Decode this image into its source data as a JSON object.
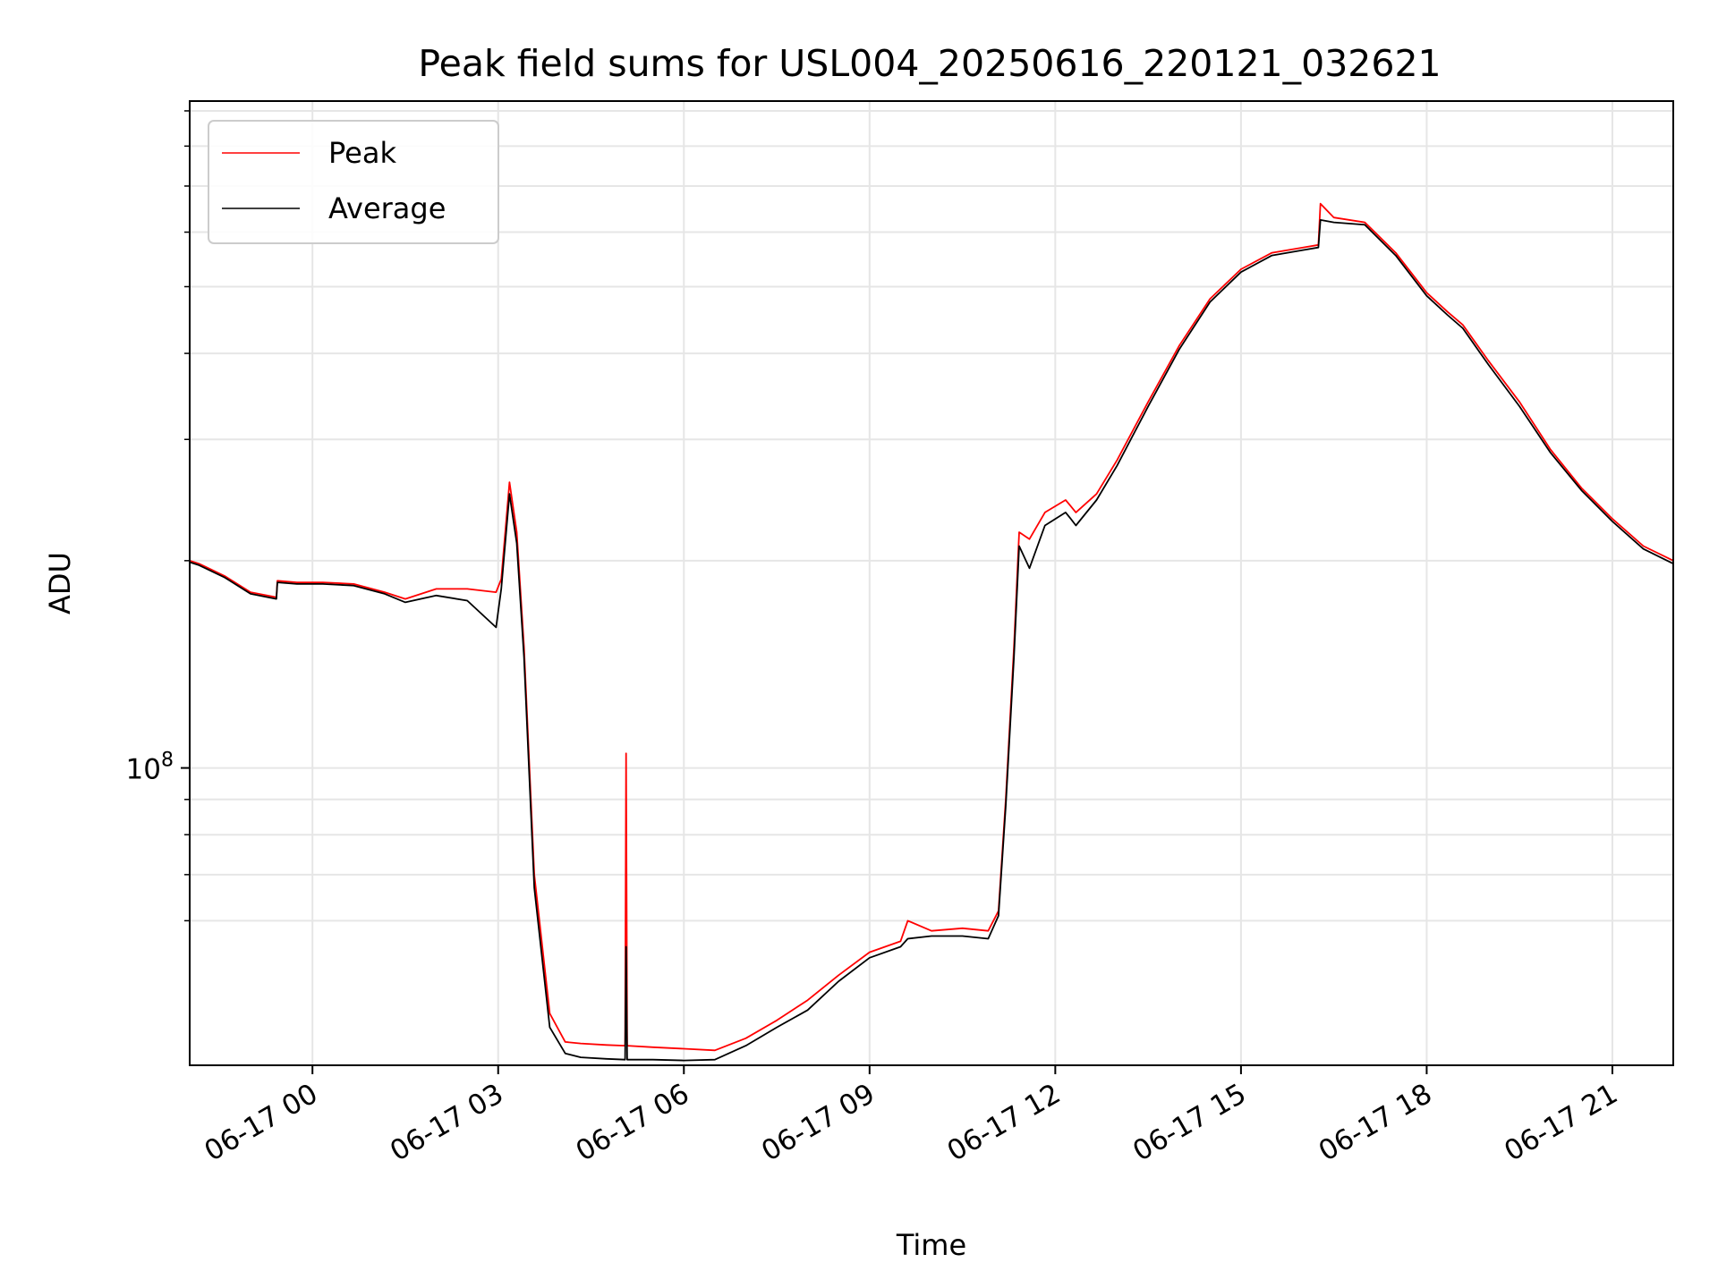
{
  "chart_data": {
    "type": "line",
    "title": "Peak field sums for USL004_20250616_220121_032621",
    "xlabel": "Time",
    "ylabel": "ADU",
    "yscale": "log",
    "ylim": [
      37000000,
      930000000
    ],
    "xlim": [
      "2025-06-16 22:01",
      "2025-06-17 21:59"
    ],
    "x_ticks": [
      "06-17 00",
      "06-17 03",
      "06-17 06",
      "06-17 09",
      "06-17 12",
      "06-17 15",
      "06-17 18",
      "06-17 21"
    ],
    "y_tick_labels": [
      {
        "base": "10",
        "exp": "8"
      }
    ],
    "y_major_ticks": [
      100000000
    ],
    "y_minor_ticks": [
      60000000,
      70000000,
      80000000,
      90000000,
      200000000,
      300000000,
      400000000,
      500000000,
      600000000,
      700000000,
      800000000,
      900000000
    ],
    "grid": true,
    "legend": {
      "placement": "top-left"
    },
    "series": [
      {
        "name": "Peak",
        "color": "#ff0000",
        "x": [
          "2025-06-16 22:01",
          "2025-06-16 22:10",
          "2025-06-16 22:35",
          "2025-06-16 23:00",
          "2025-06-16 23:25",
          "2025-06-16 23:26",
          "2025-06-16 23:45",
          "2025-06-17 00:10",
          "2025-06-17 00:40",
          "2025-06-17 01:10",
          "2025-06-17 01:30",
          "2025-06-17 02:00",
          "2025-06-17 02:30",
          "2025-06-17 02:58",
          "2025-06-17 03:03",
          "2025-06-17 03:11",
          "2025-06-17 03:18",
          "2025-06-17 03:25",
          "2025-06-17 03:35",
          "2025-06-17 03:50",
          "2025-06-17 04:05",
          "2025-06-17 04:20",
          "2025-06-17 04:45",
          "2025-06-17 05:03",
          "2025-06-17 05:04",
          "2025-06-17 05:05",
          "2025-06-17 05:30",
          "2025-06-17 06:00",
          "2025-06-17 06:30",
          "2025-06-17 07:00",
          "2025-06-17 07:30",
          "2025-06-17 08:00",
          "2025-06-17 08:30",
          "2025-06-17 09:00",
          "2025-06-17 09:30",
          "2025-06-17 09:37",
          "2025-06-17 10:00",
          "2025-06-17 10:30",
          "2025-06-17 10:55",
          "2025-06-17 11:05",
          "2025-06-17 11:12",
          "2025-06-17 11:20",
          "2025-06-17 11:25",
          "2025-06-17 11:35",
          "2025-06-17 11:50",
          "2025-06-17 12:10",
          "2025-06-17 12:15",
          "2025-06-17 12:20",
          "2025-06-17 12:40",
          "2025-06-17 13:00",
          "2025-06-17 13:30",
          "2025-06-17 14:00",
          "2025-06-17 14:30",
          "2025-06-17 15:00",
          "2025-06-17 15:30",
          "2025-06-17 16:00",
          "2025-06-17 16:15",
          "2025-06-17 16:17",
          "2025-06-17 16:30",
          "2025-06-17 17:00",
          "2025-06-17 17:30",
          "2025-06-17 18:00",
          "2025-06-17 18:20",
          "2025-06-17 18:35",
          "2025-06-17 19:00",
          "2025-06-17 19:30",
          "2025-06-17 20:00",
          "2025-06-17 20:30",
          "2025-06-17 21:00",
          "2025-06-17 21:30",
          "2025-06-17 21:59"
        ],
        "y": [
          200000000,
          198000000,
          190000000,
          180000000,
          177000000,
          187000000,
          186000000,
          186000000,
          185000000,
          180000000,
          176000000,
          182000000,
          182000000,
          180000000,
          188000000,
          260000000,
          220000000,
          150000000,
          70000000,
          44000000,
          40000000,
          39800000,
          39600000,
          39500000,
          105000000,
          39500000,
          39300000,
          39100000,
          38900000,
          40500000,
          43000000,
          46000000,
          50000000,
          54000000,
          56000000,
          60000000,
          58000000,
          58500000,
          58000000,
          62000000,
          90000000,
          150000000,
          220000000,
          215000000,
          235000000,
          245000000,
          240000000,
          235000000,
          250000000,
          280000000,
          340000000,
          410000000,
          480000000,
          530000000,
          560000000,
          570000000,
          575000000,
          660000000,
          630000000,
          620000000,
          560000000,
          490000000,
          460000000,
          440000000,
          390000000,
          340000000,
          290000000,
          255000000,
          230000000,
          210000000,
          200000000
        ]
      },
      {
        "name": "Average",
        "color": "#000000",
        "x": [
          "2025-06-16 22:01",
          "2025-06-16 22:10",
          "2025-06-16 22:35",
          "2025-06-16 23:00",
          "2025-06-16 23:25",
          "2025-06-16 23:26",
          "2025-06-16 23:45",
          "2025-06-17 00:10",
          "2025-06-17 00:40",
          "2025-06-17 01:10",
          "2025-06-17 01:30",
          "2025-06-17 02:00",
          "2025-06-17 02:30",
          "2025-06-17 02:58",
          "2025-06-17 03:03",
          "2025-06-17 03:11",
          "2025-06-17 03:18",
          "2025-06-17 03:25",
          "2025-06-17 03:35",
          "2025-06-17 03:50",
          "2025-06-17 04:05",
          "2025-06-17 04:20",
          "2025-06-17 04:45",
          "2025-06-17 05:03",
          "2025-06-17 05:04",
          "2025-06-17 05:05",
          "2025-06-17 05:30",
          "2025-06-17 06:00",
          "2025-06-17 06:30",
          "2025-06-17 07:00",
          "2025-06-17 07:30",
          "2025-06-17 08:00",
          "2025-06-17 08:30",
          "2025-06-17 09:00",
          "2025-06-17 09:30",
          "2025-06-17 09:37",
          "2025-06-17 10:00",
          "2025-06-17 10:30",
          "2025-06-17 10:55",
          "2025-06-17 11:05",
          "2025-06-17 11:12",
          "2025-06-17 11:20",
          "2025-06-17 11:25",
          "2025-06-17 11:35",
          "2025-06-17 11:50",
          "2025-06-17 12:10",
          "2025-06-17 12:15",
          "2025-06-17 12:20",
          "2025-06-17 12:40",
          "2025-06-17 13:00",
          "2025-06-17 13:30",
          "2025-06-17 14:00",
          "2025-06-17 14:30",
          "2025-06-17 15:00",
          "2025-06-17 15:30",
          "2025-06-17 16:00",
          "2025-06-17 16:15",
          "2025-06-17 16:17",
          "2025-06-17 16:30",
          "2025-06-17 17:00",
          "2025-06-17 17:30",
          "2025-06-17 18:00",
          "2025-06-17 18:20",
          "2025-06-17 18:35",
          "2025-06-17 19:00",
          "2025-06-17 19:30",
          "2025-06-17 20:00",
          "2025-06-17 20:30",
          "2025-06-17 21:00",
          "2025-06-17 21:30",
          "2025-06-17 21:59"
        ],
        "y": [
          199000000,
          197000000,
          189000000,
          179000000,
          176000000,
          186000000,
          185000000,
          185000000,
          184000000,
          179000000,
          174000000,
          178000000,
          175000000,
          160000000,
          182000000,
          250000000,
          212000000,
          145000000,
          67000000,
          42000000,
          38500000,
          38000000,
          37800000,
          37700000,
          55000000,
          37700000,
          37700000,
          37600000,
          37700000,
          39500000,
          42000000,
          44500000,
          49000000,
          53000000,
          55000000,
          56500000,
          57000000,
          57000000,
          56500000,
          61000000,
          88000000,
          145000000,
          210000000,
          195000000,
          225000000,
          235000000,
          230000000,
          225000000,
          245000000,
          275000000,
          335000000,
          405000000,
          475000000,
          525000000,
          555000000,
          565000000,
          570000000,
          625000000,
          620000000,
          615000000,
          555000000,
          485000000,
          455000000,
          435000000,
          385000000,
          335000000,
          287000000,
          253000000,
          228000000,
          208000000,
          198000000
        ]
      }
    ]
  }
}
